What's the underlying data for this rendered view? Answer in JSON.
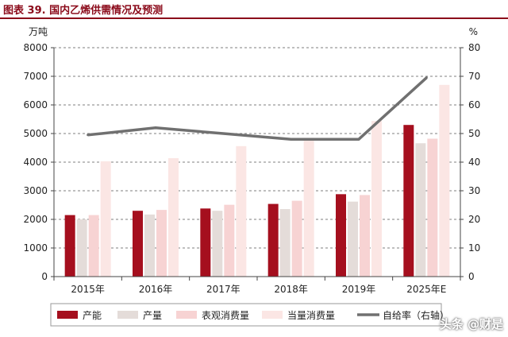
{
  "header": {
    "title": "图表 39. 国内乙烯供需情况及预测"
  },
  "watermark": "头条 @财是",
  "chart_data": {
    "type": "bar",
    "categories": [
      "2015年",
      "2016年",
      "2017年",
      "2018年",
      "2019年",
      "2025年E"
    ],
    "y_left": {
      "unit": "万吨",
      "ylim": [
        0,
        8000
      ],
      "ticks": [
        "0",
        "1000",
        "2000",
        "3000",
        "4000",
        "5000",
        "6000",
        "7000",
        "8000"
      ]
    },
    "y_right": {
      "unit": "%",
      "ylim": [
        0,
        80
      ],
      "ticks": [
        "0",
        "10",
        "20",
        "30",
        "40",
        "50",
        "60",
        "70",
        "80"
      ]
    },
    "grid": true,
    "legend_position": "bottom",
    "series": [
      {
        "name": "产能",
        "type": "bar",
        "axis": "left",
        "color": "#a50f1e",
        "values": [
          2150,
          2300,
          2380,
          2540,
          2880,
          5300
        ]
      },
      {
        "name": "产量",
        "type": "bar",
        "axis": "left",
        "color": "#e4dcd9",
        "values": [
          2000,
          2170,
          2300,
          2360,
          2620,
          4660
        ]
      },
      {
        "name": "表观消费量",
        "type": "bar",
        "axis": "left",
        "color": "#f7d3d3",
        "values": [
          2150,
          2330,
          2510,
          2650,
          2850,
          4820
        ]
      },
      {
        "name": "当量消费量",
        "type": "bar",
        "axis": "left",
        "color": "#fbe6e4",
        "values": [
          4030,
          4140,
          4560,
          4850,
          5440,
          6700
        ]
      },
      {
        "name": "自给率（右轴）",
        "type": "line",
        "axis": "right",
        "color": "#707070",
        "values": [
          49.5,
          52,
          50,
          48,
          48,
          69.5
        ]
      }
    ]
  }
}
